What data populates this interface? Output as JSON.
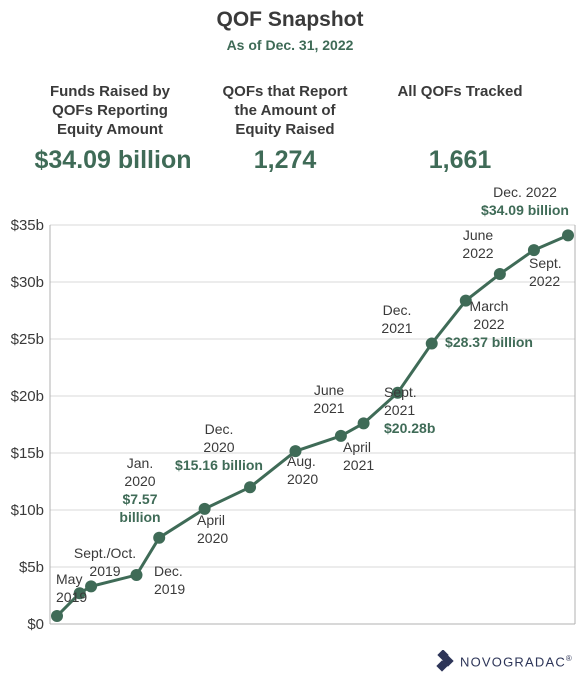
{
  "header": {
    "title": "QOF Snapshot",
    "subtitle": "As of Dec. 31, 2022"
  },
  "stats": [
    {
      "label_lines": [
        "Funds Raised by",
        "QOFs Reporting",
        "Equity Amount"
      ],
      "value": "$34.09 billion"
    },
    {
      "label_lines": [
        "QOFs that Report",
        "the Amount of",
        "Equity Raised"
      ],
      "value": "1,274"
    },
    {
      "label_lines": [
        "All QOFs Tracked"
      ],
      "value": "1,661"
    }
  ],
  "brand": {
    "name": "NOVOGRADAC",
    "mark": "®"
  },
  "colors": {
    "accent": "#3f6b57",
    "text": "#3a3a3a",
    "grid": "#d9d9d9",
    "brand": "#2d3558"
  },
  "chart_data": {
    "type": "line",
    "ylim": [
      0,
      35
    ],
    "y_ticks": [
      "$0",
      "$5b",
      "$10b",
      "$15b",
      "$20b",
      "$25b",
      "$30b",
      "$35b"
    ],
    "grid": true,
    "series": [
      {
        "points": [
          {
            "x": "2019-03",
            "y": 0.7
          },
          {
            "x": "2019-05",
            "y": 2.7
          },
          {
            "x": "2019-06",
            "y": 3.3
          },
          {
            "x": "2019-10",
            "y": 4.3
          },
          {
            "x": "2019-12",
            "y": 7.57
          },
          {
            "x": "2020-04",
            "y": 10.1
          },
          {
            "x": "2020-08",
            "y": 12.0
          },
          {
            "x": "2020-12",
            "y": 15.16
          },
          {
            "x": "2021-04",
            "y": 16.5
          },
          {
            "x": "2021-06",
            "y": 17.6
          },
          {
            "x": "2021-09",
            "y": 20.28
          },
          {
            "x": "2021-12",
            "y": 24.6
          },
          {
            "x": "2022-03",
            "y": 28.37
          },
          {
            "x": "2022-06",
            "y": 30.7
          },
          {
            "x": "2022-09",
            "y": 32.8
          },
          {
            "x": "2022-12",
            "y": 34.09
          }
        ]
      }
    ],
    "annotations": [
      {
        "lines": [
          "May",
          "2019"
        ],
        "bold": []
      },
      {
        "lines": [
          "Sept./Oct.",
          "2019"
        ],
        "bold": []
      },
      {
        "lines": [
          "Dec.",
          "2019"
        ],
        "bold": []
      },
      {
        "lines": [
          "Jan.",
          "2020",
          "$7.57",
          "billion"
        ],
        "bold": [
          2,
          3
        ]
      },
      {
        "lines": [
          "April",
          "2020"
        ],
        "bold": []
      },
      {
        "lines": [
          "Dec.",
          "2020",
          "$15.16 billion"
        ],
        "bold": [
          2
        ]
      },
      {
        "lines": [
          "Aug.",
          "2020"
        ],
        "bold": []
      },
      {
        "lines": [
          "June",
          "2021"
        ],
        "bold": []
      },
      {
        "lines": [
          "April",
          "2021"
        ],
        "bold": []
      },
      {
        "lines": [
          "Sept.",
          "2021",
          "$20.28b"
        ],
        "bold": [
          2
        ]
      },
      {
        "lines": [
          "Dec.",
          "2021"
        ],
        "bold": []
      },
      {
        "lines": [
          "March",
          "2022",
          "$28.37 billion"
        ],
        "bold": [
          2
        ]
      },
      {
        "lines": [
          "June",
          "2022"
        ],
        "bold": []
      },
      {
        "lines": [
          "Sept.",
          "2022"
        ],
        "bold": []
      },
      {
        "lines": [
          "Dec. 2022",
          "$34.09 billion"
        ],
        "bold": [
          1
        ]
      }
    ]
  }
}
